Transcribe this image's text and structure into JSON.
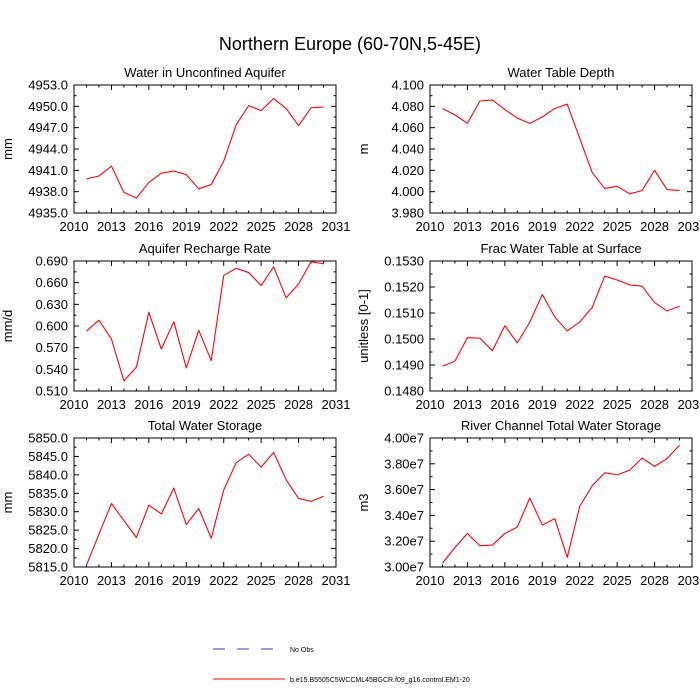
{
  "figure_title": "Northern Europe (60-70N,5-45E)",
  "legend": {
    "no_obs_label": "No Obs",
    "model_label": "b.e15.B5505C5WCCML45BGCR.f09_g16.control.EM1-20",
    "no_obs_color": "#3b3bc8",
    "model_color": "#ff0000"
  },
  "chart_data": [
    {
      "type": "line",
      "title": "Water in Unconfined Aquifer",
      "ylabel": "mm",
      "xlim": [
        2010,
        2031
      ],
      "ylim": [
        4935.0,
        4953.0
      ],
      "xticks": [
        2010,
        2013,
        2016,
        2019,
        2022,
        2025,
        2028,
        2031
      ],
      "yticks": [
        "4935.0",
        "4938.0",
        "4941.0",
        "4944.0",
        "4947.0",
        "4950.0",
        "4953.0"
      ],
      "series": [
        {
          "color": "#ff0000",
          "x": [
            2011,
            2012,
            2013,
            2014,
            2015,
            2016,
            2017,
            2018,
            2019,
            2020,
            2021,
            2022,
            2023,
            2024,
            2025,
            2026,
            2027,
            2028,
            2029,
            2030
          ],
          "values": [
            4939.8,
            4940.2,
            4941.6,
            4937.9,
            4937.1,
            4939.3,
            4940.6,
            4940.9,
            4940.4,
            4938.4,
            4939.0,
            4942.3,
            4947.4,
            4950.1,
            4949.4,
            4951.1,
            4949.7,
            4947.3,
            4949.8,
            4949.9
          ]
        }
      ]
    },
    {
      "type": "line",
      "title": "Water Table Depth",
      "ylabel": "m",
      "xlim": [
        2010,
        2031
      ],
      "ylim": [
        3.98,
        4.1
      ],
      "xticks": [
        2010,
        2013,
        2016,
        2019,
        2022,
        2025,
        2028,
        2031
      ],
      "yticks": [
        "3.980",
        "4.000",
        "4.020",
        "4.040",
        "4.060",
        "4.080",
        "4.100"
      ],
      "series": [
        {
          "color": "#ff0000",
          "x": [
            2011,
            2012,
            2013,
            2014,
            2015,
            2016,
            2017,
            2018,
            2019,
            2020,
            2021,
            2022,
            2023,
            2024,
            2025,
            2026,
            2027,
            2028,
            2029,
            2030
          ],
          "values": [
            4.078,
            4.072,
            4.064,
            4.085,
            4.086,
            4.077,
            4.069,
            4.064,
            4.07,
            4.078,
            4.082,
            4.05,
            4.018,
            4.003,
            4.005,
            3.998,
            4.001,
            4.02,
            4.002,
            4.001
          ]
        }
      ]
    },
    {
      "type": "line",
      "title": "Aquifer Recharge Rate",
      "ylabel": "mm/d",
      "xlim": [
        2010,
        2031
      ],
      "ylim": [
        0.51,
        0.69
      ],
      "xticks": [
        2010,
        2013,
        2016,
        2019,
        2022,
        2025,
        2028,
        2031
      ],
      "yticks": [
        "0.510",
        "0.540",
        "0.570",
        "0.600",
        "0.630",
        "0.660",
        "0.690"
      ],
      "series": [
        {
          "color": "#ff0000",
          "x": [
            2011,
            2012,
            2013,
            2014,
            2015,
            2016,
            2017,
            2018,
            2019,
            2020,
            2021,
            2022,
            2023,
            2024,
            2025,
            2026,
            2027,
            2028,
            2029,
            2030
          ],
          "values": [
            0.593,
            0.608,
            0.582,
            0.524,
            0.543,
            0.619,
            0.568,
            0.606,
            0.542,
            0.594,
            0.552,
            0.67,
            0.68,
            0.674,
            0.656,
            0.682,
            0.639,
            0.658,
            0.689,
            0.686
          ]
        }
      ]
    },
    {
      "type": "line",
      "title": "Frac Water Table at Surface",
      "ylabel": "unitless [0-1]",
      "xlim": [
        2010,
        2031
      ],
      "ylim": [
        0.148,
        0.153
      ],
      "xticks": [
        2010,
        2013,
        2016,
        2019,
        2022,
        2025,
        2028,
        2031
      ],
      "yticks": [
        "0.1480",
        "0.1490",
        "0.1500",
        "0.1510",
        "0.1520",
        "0.1530"
      ],
      "series": [
        {
          "color": "#ff0000",
          "x": [
            2011,
            2012,
            2013,
            2014,
            2015,
            2016,
            2017,
            2018,
            2019,
            2020,
            2021,
            2022,
            2023,
            2024,
            2025,
            2026,
            2027,
            2028,
            2029,
            2030
          ],
          "values": [
            0.14895,
            0.14915,
            0.15005,
            0.15003,
            0.14955,
            0.15051,
            0.14985,
            0.15065,
            0.15171,
            0.15085,
            0.15031,
            0.15065,
            0.15121,
            0.15242,
            0.15227,
            0.15208,
            0.15203,
            0.1514,
            0.15108,
            0.15126
          ]
        }
      ]
    },
    {
      "type": "line",
      "title": "Total Water Storage",
      "ylabel": "mm",
      "xlim": [
        2010,
        2031
      ],
      "ylim": [
        5815.0,
        5850.0
      ],
      "xticks": [
        2010,
        2013,
        2016,
        2019,
        2022,
        2025,
        2028,
        2031
      ],
      "yticks": [
        "5815.0",
        "5820.0",
        "5825.0",
        "5830.0",
        "5835.0",
        "5840.0",
        "5845.0",
        "5850.0"
      ],
      "series": [
        {
          "color": "#ff0000",
          "x": [
            2011,
            2012,
            2013,
            2014,
            2015,
            2016,
            2017,
            2018,
            2019,
            2020,
            2021,
            2022,
            2023,
            2024,
            2025,
            2026,
            2027,
            2028,
            2029,
            2030
          ],
          "values": [
            5815.5,
            5823.9,
            5832.2,
            5827.6,
            5823.0,
            5831.8,
            5829.4,
            5836.4,
            5826.5,
            5830.9,
            5822.8,
            5835.9,
            5843.3,
            5845.6,
            5842.1,
            5846.1,
            5838.7,
            5833.6,
            5832.8,
            5834.2
          ]
        }
      ]
    },
    {
      "type": "line",
      "title": "River Channel Total Water Storage",
      "ylabel": "m3",
      "xlim": [
        2010,
        2031
      ],
      "ylim": [
        30000000,
        40000000
      ],
      "xticks": [
        2010,
        2013,
        2016,
        2019,
        2022,
        2025,
        2028,
        2031
      ],
      "yticks": [
        "3.00e7",
        "3.20e7",
        "3.40e7",
        "3.60e7",
        "3.80e7",
        "4.00e7"
      ],
      "series": [
        {
          "color": "#ff0000",
          "x": [
            2011,
            2012,
            2013,
            2014,
            2015,
            2016,
            2017,
            2018,
            2019,
            2020,
            2021,
            2022,
            2023,
            2024,
            2025,
            2026,
            2027,
            2028,
            2029,
            2030
          ],
          "values": [
            30300000,
            31500000,
            32600000,
            31650000,
            31700000,
            32600000,
            33100000,
            35350000,
            33250000,
            33750000,
            30750000,
            34700000,
            36300000,
            37300000,
            37150000,
            37500000,
            38450000,
            37800000,
            38400000,
            39450000
          ]
        }
      ]
    }
  ]
}
